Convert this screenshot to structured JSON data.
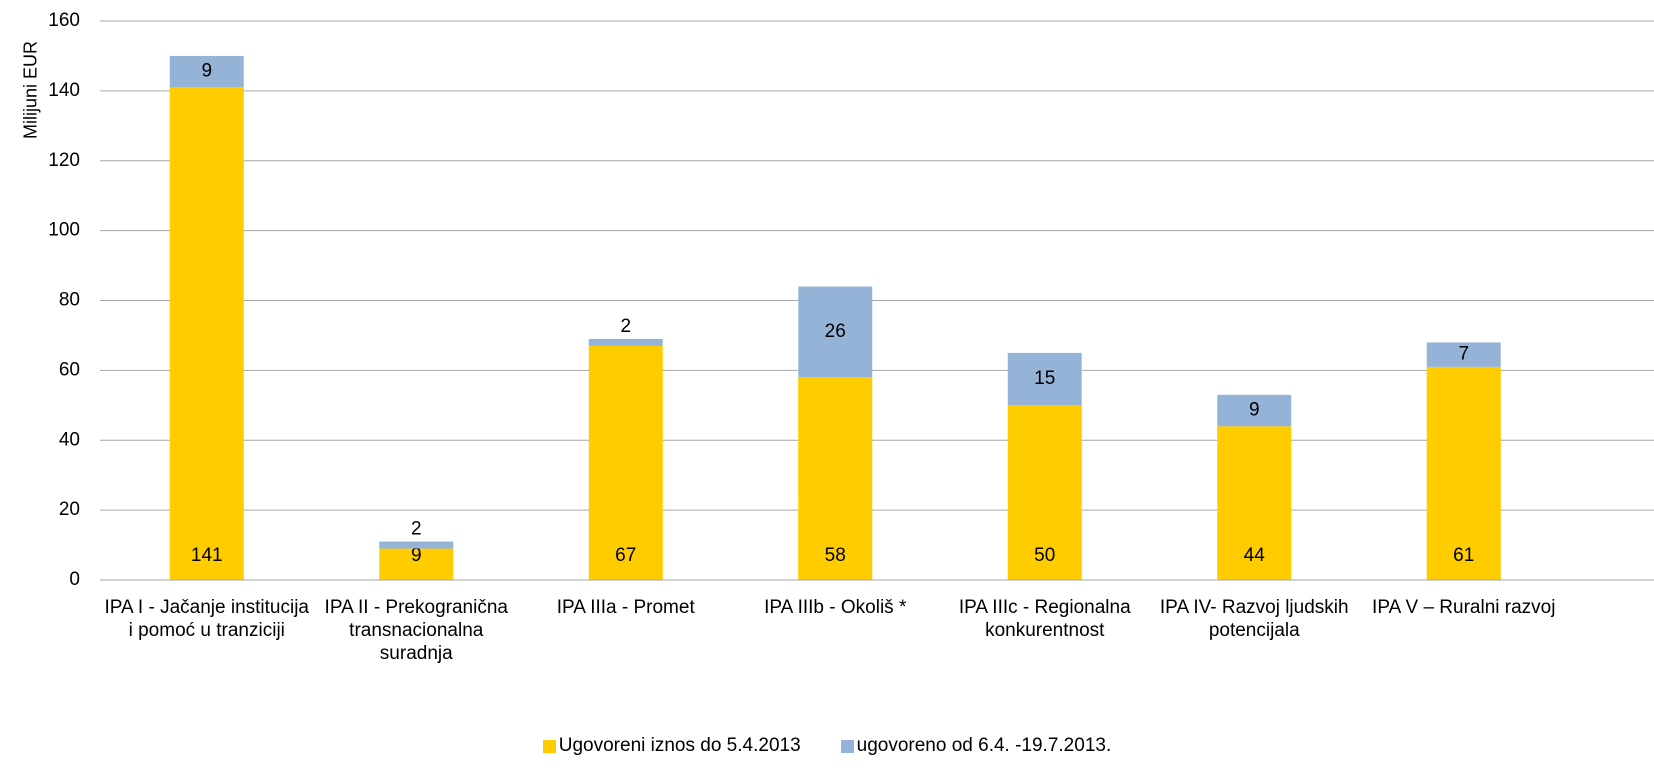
{
  "chart_data": {
    "type": "stacked_bar",
    "y_label": "Milijuni EUR",
    "categories": [
      "IPA I - Jačanje institucija i pomoć u tranziciji",
      "IPA II - Prekogranična transnacionalna suradnja",
      "IPA IIIa - Promet",
      "IPA IIIb - Okoliš *",
      "IPA IIIc - Regionalna konkurentnost",
      "IPA IV- Razvoj ljudskih potencijala",
      "IPA V – Ruralni razvoj"
    ],
    "series": [
      {
        "name": "Ugovoreni iznos do 5.4.2013",
        "color": "#ffcc00",
        "values": [
          141,
          9,
          67,
          58,
          50,
          44,
          61
        ]
      },
      {
        "name": "ugovoreno od 6.4. -19.7.2013.",
        "color": "#95b3d7",
        "values": [
          9,
          2,
          2,
          26,
          15,
          9,
          7
        ]
      }
    ],
    "ylim": [
      0,
      160
    ],
    "yticks": [
      0,
      20,
      40,
      60,
      80,
      100,
      120,
      140,
      160
    ],
    "grid": true
  }
}
